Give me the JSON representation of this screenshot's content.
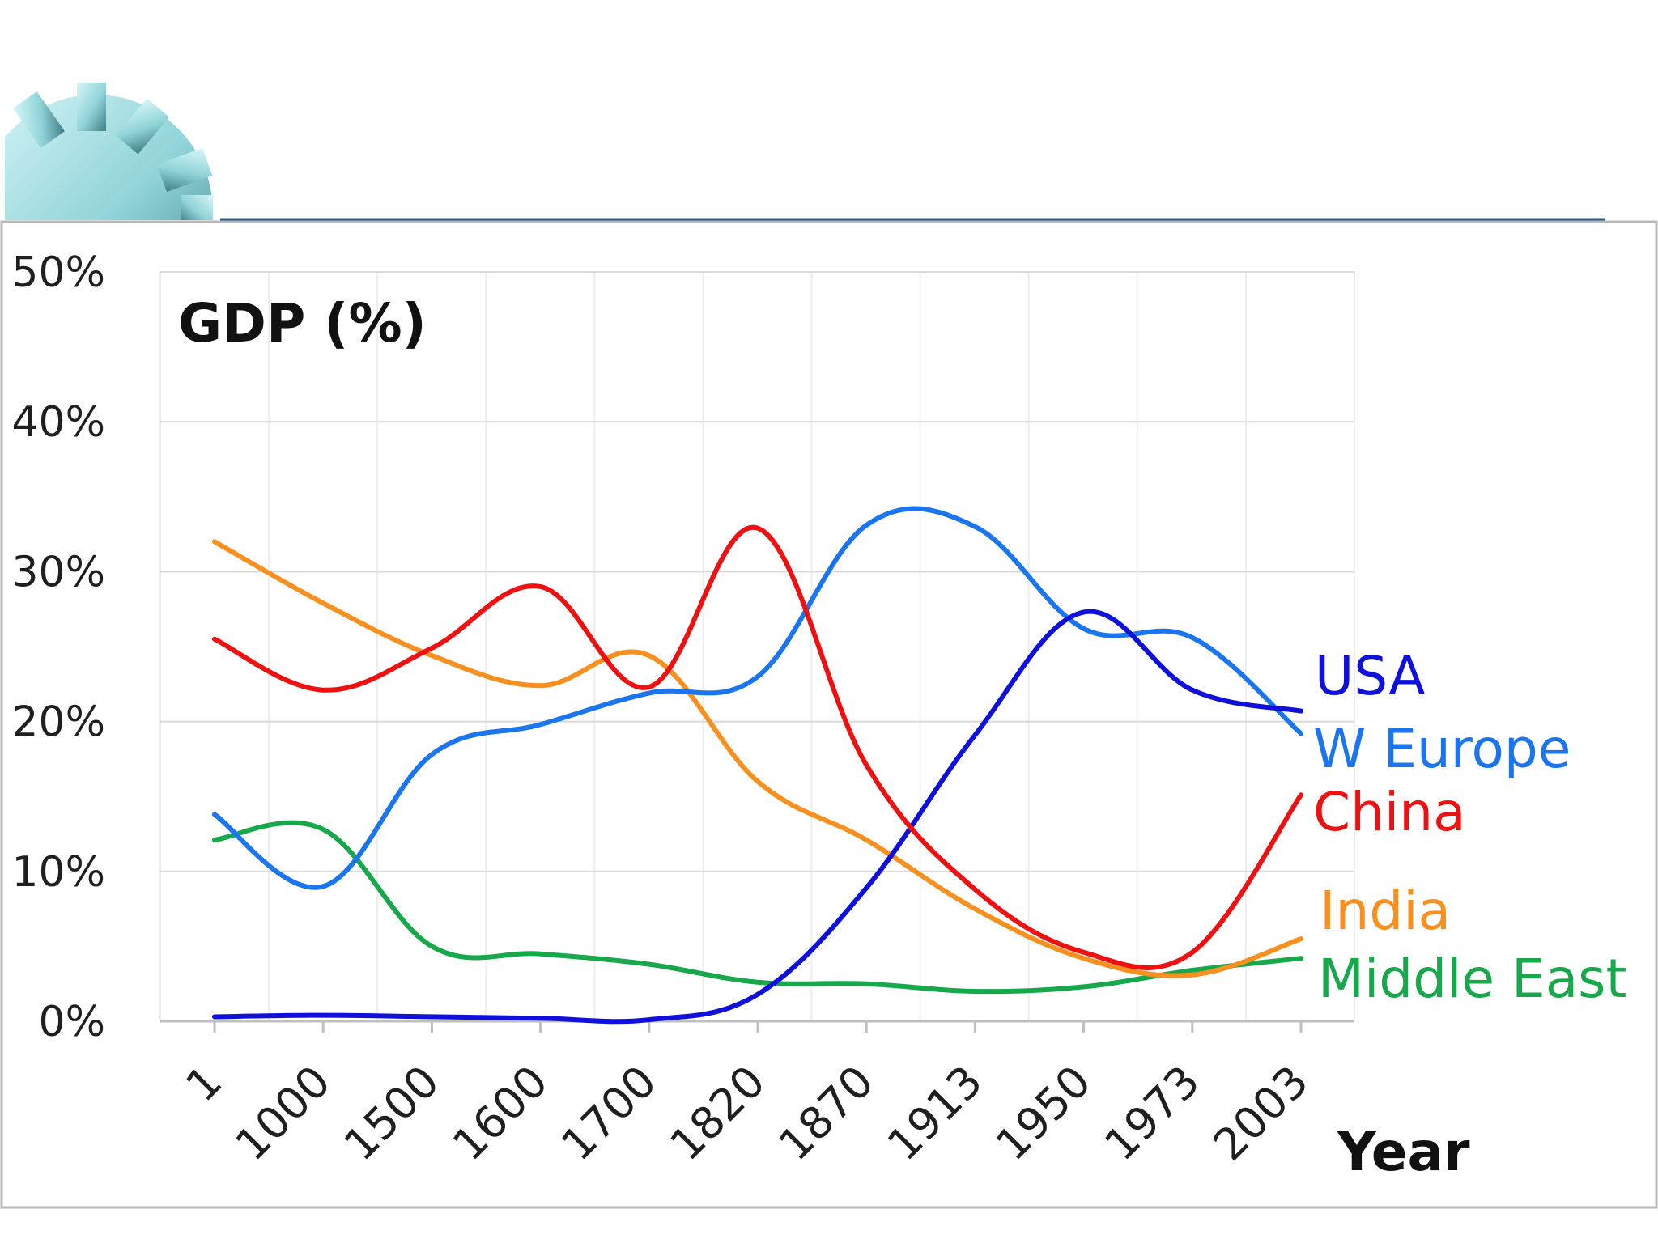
{
  "colors": {
    "usa": "#1010dd",
    "w_europe": "#1a75ef",
    "china": "#ee1111",
    "india": "#f7901e",
    "middle_east": "#16a84a",
    "gear": "#8fd3d8",
    "frame": "#b8b8b8",
    "header_rule": "#1f5c99"
  },
  "decor": {
    "gear_icon": "gear-icon"
  },
  "chart_data": {
    "type": "line",
    "title": "GDP (%)",
    "xlabel": "Year",
    "ylabel": "",
    "categories": [
      "1",
      "1000",
      "1500",
      "1600",
      "1700",
      "1820",
      "1870",
      "1913",
      "1950",
      "1973",
      "2003"
    ],
    "y_ticks": [
      "0%",
      "10%",
      "20%",
      "30%",
      "40%",
      "50%"
    ],
    "ylim": [
      0,
      50
    ],
    "grid": true,
    "legend": "inline labels at right end of lines",
    "series": [
      {
        "key": "usa",
        "name": "USA",
        "values": [
          0.3,
          0.4,
          0.3,
          0.2,
          0.1,
          1.8,
          8.9,
          19.1,
          27.3,
          22.1,
          20.7
        ]
      },
      {
        "key": "w_europe",
        "name": "W Europe",
        "values": [
          13.8,
          9.0,
          17.8,
          19.8,
          21.9,
          23.0,
          33.1,
          33.0,
          26.2,
          25.6,
          19.2
        ]
      },
      {
        "key": "china",
        "name": "China",
        "values": [
          25.5,
          22.1,
          24.9,
          29.0,
          22.3,
          32.9,
          17.1,
          8.8,
          4.6,
          4.6,
          15.1
        ]
      },
      {
        "key": "india",
        "name": "India",
        "values": [
          32.0,
          27.9,
          24.4,
          22.4,
          24.4,
          16.0,
          12.1,
          7.5,
          4.2,
          3.1,
          5.5
        ]
      },
      {
        "key": "middle_east",
        "name": "Middle East",
        "values": [
          12.1,
          12.8,
          5.0,
          4.5,
          3.8,
          2.6,
          2.5,
          2.0,
          2.3,
          3.4,
          4.2
        ]
      }
    ]
  }
}
